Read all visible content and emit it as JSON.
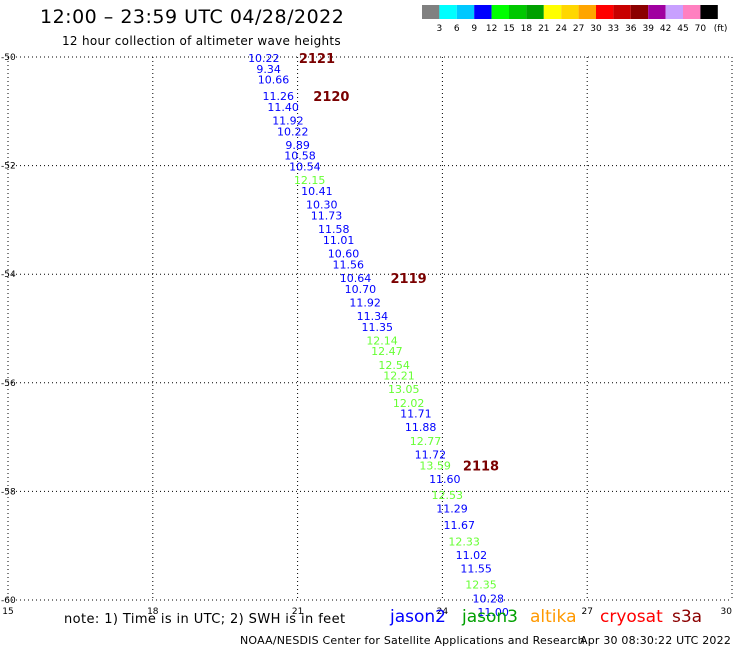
{
  "title": "12:00 – 23:59 UTC 04/28/2022",
  "subtitle": "12 hour collection of altimeter wave heights",
  "legend": {
    "unit": "(ft)",
    "colors": [
      "#808080",
      "#00ffff",
      "#00c8ff",
      "#0000ff",
      "#00ff00",
      "#00c800",
      "#00a000",
      "#ffff00",
      "#ffd700",
      "#ffa500",
      "#ff0000",
      "#c80000",
      "#8b0000",
      "#a000a0",
      "#c8a0ff",
      "#ff80c0",
      "#000000"
    ],
    "labels": [
      "3",
      "6",
      "9",
      "12",
      "15",
      "18",
      "21",
      "24",
      "27",
      "30",
      "33",
      "36",
      "39",
      "42",
      "45",
      "70"
    ]
  },
  "axes": {
    "x_ticks": [
      "15",
      "18",
      "21",
      "24",
      "27",
      "30"
    ],
    "y_ticks": [
      "-50",
      "-52",
      "-54",
      "-56",
      "-58",
      "-60"
    ]
  },
  "chart_data": {
    "type": "scatter",
    "x_range": [
      15,
      30
    ],
    "y_range": [
      -60,
      -50
    ],
    "grid": true,
    "points": [
      {
        "x": 20.3,
        "y": -50.0,
        "value": "10.22",
        "color": "#0000ff"
      },
      {
        "x": 20.4,
        "y": -50.2,
        "value": "9.34",
        "color": "#0000ff"
      },
      {
        "x": 20.5,
        "y": -50.4,
        "value": "10.66",
        "color": "#0000ff"
      },
      {
        "x": 20.6,
        "y": -50.7,
        "value": "11.26",
        "color": "#0000ff"
      },
      {
        "x": 20.7,
        "y": -50.9,
        "value": "11.40",
        "color": "#0000ff"
      },
      {
        "x": 20.8,
        "y": -51.15,
        "value": "11.92",
        "color": "#0000ff"
      },
      {
        "x": 20.9,
        "y": -51.35,
        "value": "10.22",
        "color": "#0000ff"
      },
      {
        "x": 21.0,
        "y": -51.6,
        "value": "9.89",
        "color": "#0000ff"
      },
      {
        "x": 21.05,
        "y": -51.8,
        "value": "10.58",
        "color": "#0000ff"
      },
      {
        "x": 21.15,
        "y": -52.0,
        "value": "10.54",
        "color": "#0000ff"
      },
      {
        "x": 21.25,
        "y": -52.25,
        "value": "12.15",
        "color": "#66ff33"
      },
      {
        "x": 21.4,
        "y": -52.45,
        "value": "10.41",
        "color": "#0000ff"
      },
      {
        "x": 21.5,
        "y": -52.7,
        "value": "10.30",
        "color": "#0000ff"
      },
      {
        "x": 21.6,
        "y": -52.9,
        "value": "11.73",
        "color": "#0000ff"
      },
      {
        "x": 21.75,
        "y": -53.15,
        "value": "11.58",
        "color": "#0000ff"
      },
      {
        "x": 21.85,
        "y": -53.35,
        "value": "11.01",
        "color": "#0000ff"
      },
      {
        "x": 21.95,
        "y": -53.6,
        "value": "10.60",
        "color": "#0000ff"
      },
      {
        "x": 22.05,
        "y": -53.8,
        "value": "11.56",
        "color": "#0000ff"
      },
      {
        "x": 22.2,
        "y": -54.05,
        "value": "10.64",
        "color": "#0000ff"
      },
      {
        "x": 22.3,
        "y": -54.25,
        "value": "10.70",
        "color": "#0000ff"
      },
      {
        "x": 22.4,
        "y": -54.5,
        "value": "11.92",
        "color": "#0000ff"
      },
      {
        "x": 22.55,
        "y": -54.75,
        "value": "11.34",
        "color": "#0000ff"
      },
      {
        "x": 22.65,
        "y": -54.95,
        "value": "11.35",
        "color": "#0000ff"
      },
      {
        "x": 22.75,
        "y": -55.2,
        "value": "12.14",
        "color": "#66ff33"
      },
      {
        "x": 22.85,
        "y": -55.4,
        "value": "12.47",
        "color": "#66ff33"
      },
      {
        "x": 23.0,
        "y": -55.65,
        "value": "12.54",
        "color": "#66ff33"
      },
      {
        "x": 23.1,
        "y": -55.85,
        "value": "12.21",
        "color": "#66ff33"
      },
      {
        "x": 23.2,
        "y": -56.1,
        "value": "13.05",
        "color": "#66ff33"
      },
      {
        "x": 23.3,
        "y": -56.35,
        "value": "12.02",
        "color": "#66ff33"
      },
      {
        "x": 23.45,
        "y": -56.55,
        "value": "11.71",
        "color": "#0000ff"
      },
      {
        "x": 23.55,
        "y": -56.8,
        "value": "11.88",
        "color": "#0000ff"
      },
      {
        "x": 23.65,
        "y": -57.05,
        "value": "12.77",
        "color": "#66ff33"
      },
      {
        "x": 23.75,
        "y": -57.3,
        "value": "11.72",
        "color": "#0000ff"
      },
      {
        "x": 23.85,
        "y": -57.5,
        "value": "13.59",
        "color": "#66ff33"
      },
      {
        "x": 24.05,
        "y": -57.75,
        "value": "11.60",
        "color": "#0000ff"
      },
      {
        "x": 24.1,
        "y": -58.05,
        "value": "12.53",
        "color": "#66ff33"
      },
      {
        "x": 24.2,
        "y": -58.3,
        "value": "11.29",
        "color": "#0000ff"
      },
      {
        "x": 24.35,
        "y": -58.6,
        "value": "11.67",
        "color": "#0000ff"
      },
      {
        "x": 24.45,
        "y": -58.9,
        "value": "12.33",
        "color": "#66ff33"
      },
      {
        "x": 24.6,
        "y": -59.15,
        "value": "11.02",
        "color": "#0000ff"
      },
      {
        "x": 24.7,
        "y": -59.4,
        "value": "11.55",
        "color": "#0000ff"
      },
      {
        "x": 24.8,
        "y": -59.7,
        "value": "12.35",
        "color": "#66ff33"
      },
      {
        "x": 24.95,
        "y": -59.95,
        "value": "10.28",
        "color": "#0000ff"
      },
      {
        "x": 25.05,
        "y": -60.2,
        "value": "11.00",
        "color": "#0000ff"
      }
    ],
    "time_labels": [
      {
        "x": 21.4,
        "y": -50.0,
        "value": "2121"
      },
      {
        "x": 21.7,
        "y": -50.7,
        "value": "2120"
      },
      {
        "x": 23.3,
        "y": -54.05,
        "value": "2119"
      },
      {
        "x": 24.8,
        "y": -57.5,
        "value": "2118"
      }
    ],
    "time_label_color": "#7a0000"
  },
  "footer": {
    "note": "note: 1) Time is in UTC; 2) SWH is in feet",
    "satellites": [
      {
        "name": "jason2",
        "color": "#0000ff"
      },
      {
        "name": "jason3",
        "color": "#00a000"
      },
      {
        "name": "altika",
        "color": "#ff9900"
      },
      {
        "name": "cryosat",
        "color": "#ff0000"
      },
      {
        "name": "s3a",
        "color": "#8b0000"
      }
    ],
    "credit": "NOAA/NESDIS Center for Satellite Applications and Research",
    "timestamp": "Apr 30 08:30:22 UTC 2022"
  }
}
